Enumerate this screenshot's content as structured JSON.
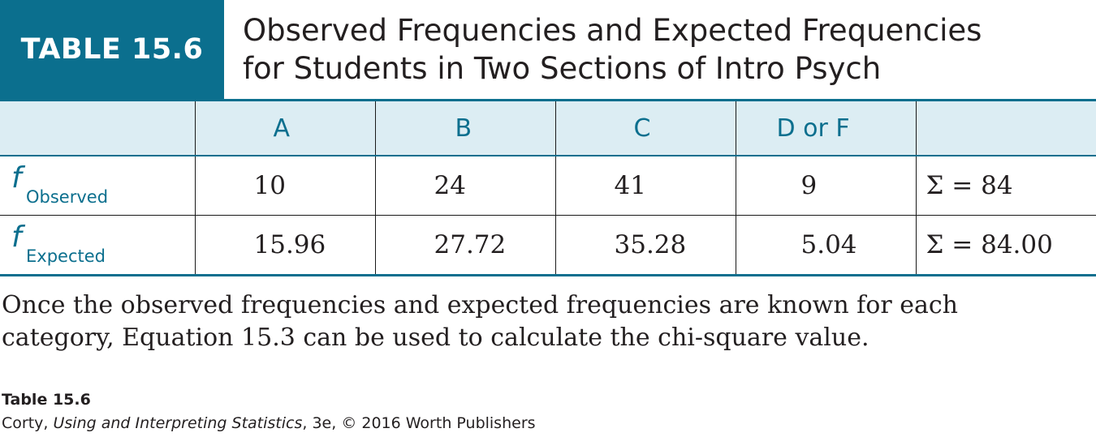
{
  "table": {
    "label": "TABLE 15.6",
    "title_lines": [
      "Observed Frequencies and Expected Frequencies",
      "for Students in Two Sections of Intro Psych"
    ],
    "columns": [
      "A",
      "B",
      "C",
      "D or F",
      ""
    ],
    "rows": [
      {
        "symbol": "f",
        "subscript": "Observed",
        "values": [
          "10",
          "24",
          "41",
          "9"
        ],
        "sum": "Σ = 84"
      },
      {
        "symbol": "f",
        "subscript": "Expected",
        "values": [
          "15.96",
          "27.72",
          "35.28",
          "5.04"
        ],
        "sum": "Σ = 84.00"
      }
    ]
  },
  "caption_lines": [
    "Once the observed frequencies and expected frequencies are known for each",
    "category, Equation 15.3 can be used to calculate the chi-square value."
  ],
  "credit": {
    "title": "Table 15.6",
    "author": "Corty, ",
    "book": "Using and Interpreting Statistics",
    "rest": ", 3e, © 2016 Worth Publishers"
  },
  "colors": {
    "accent": "#0b6f8e",
    "header_fill": "#dcedf3",
    "text": "#231f20"
  }
}
